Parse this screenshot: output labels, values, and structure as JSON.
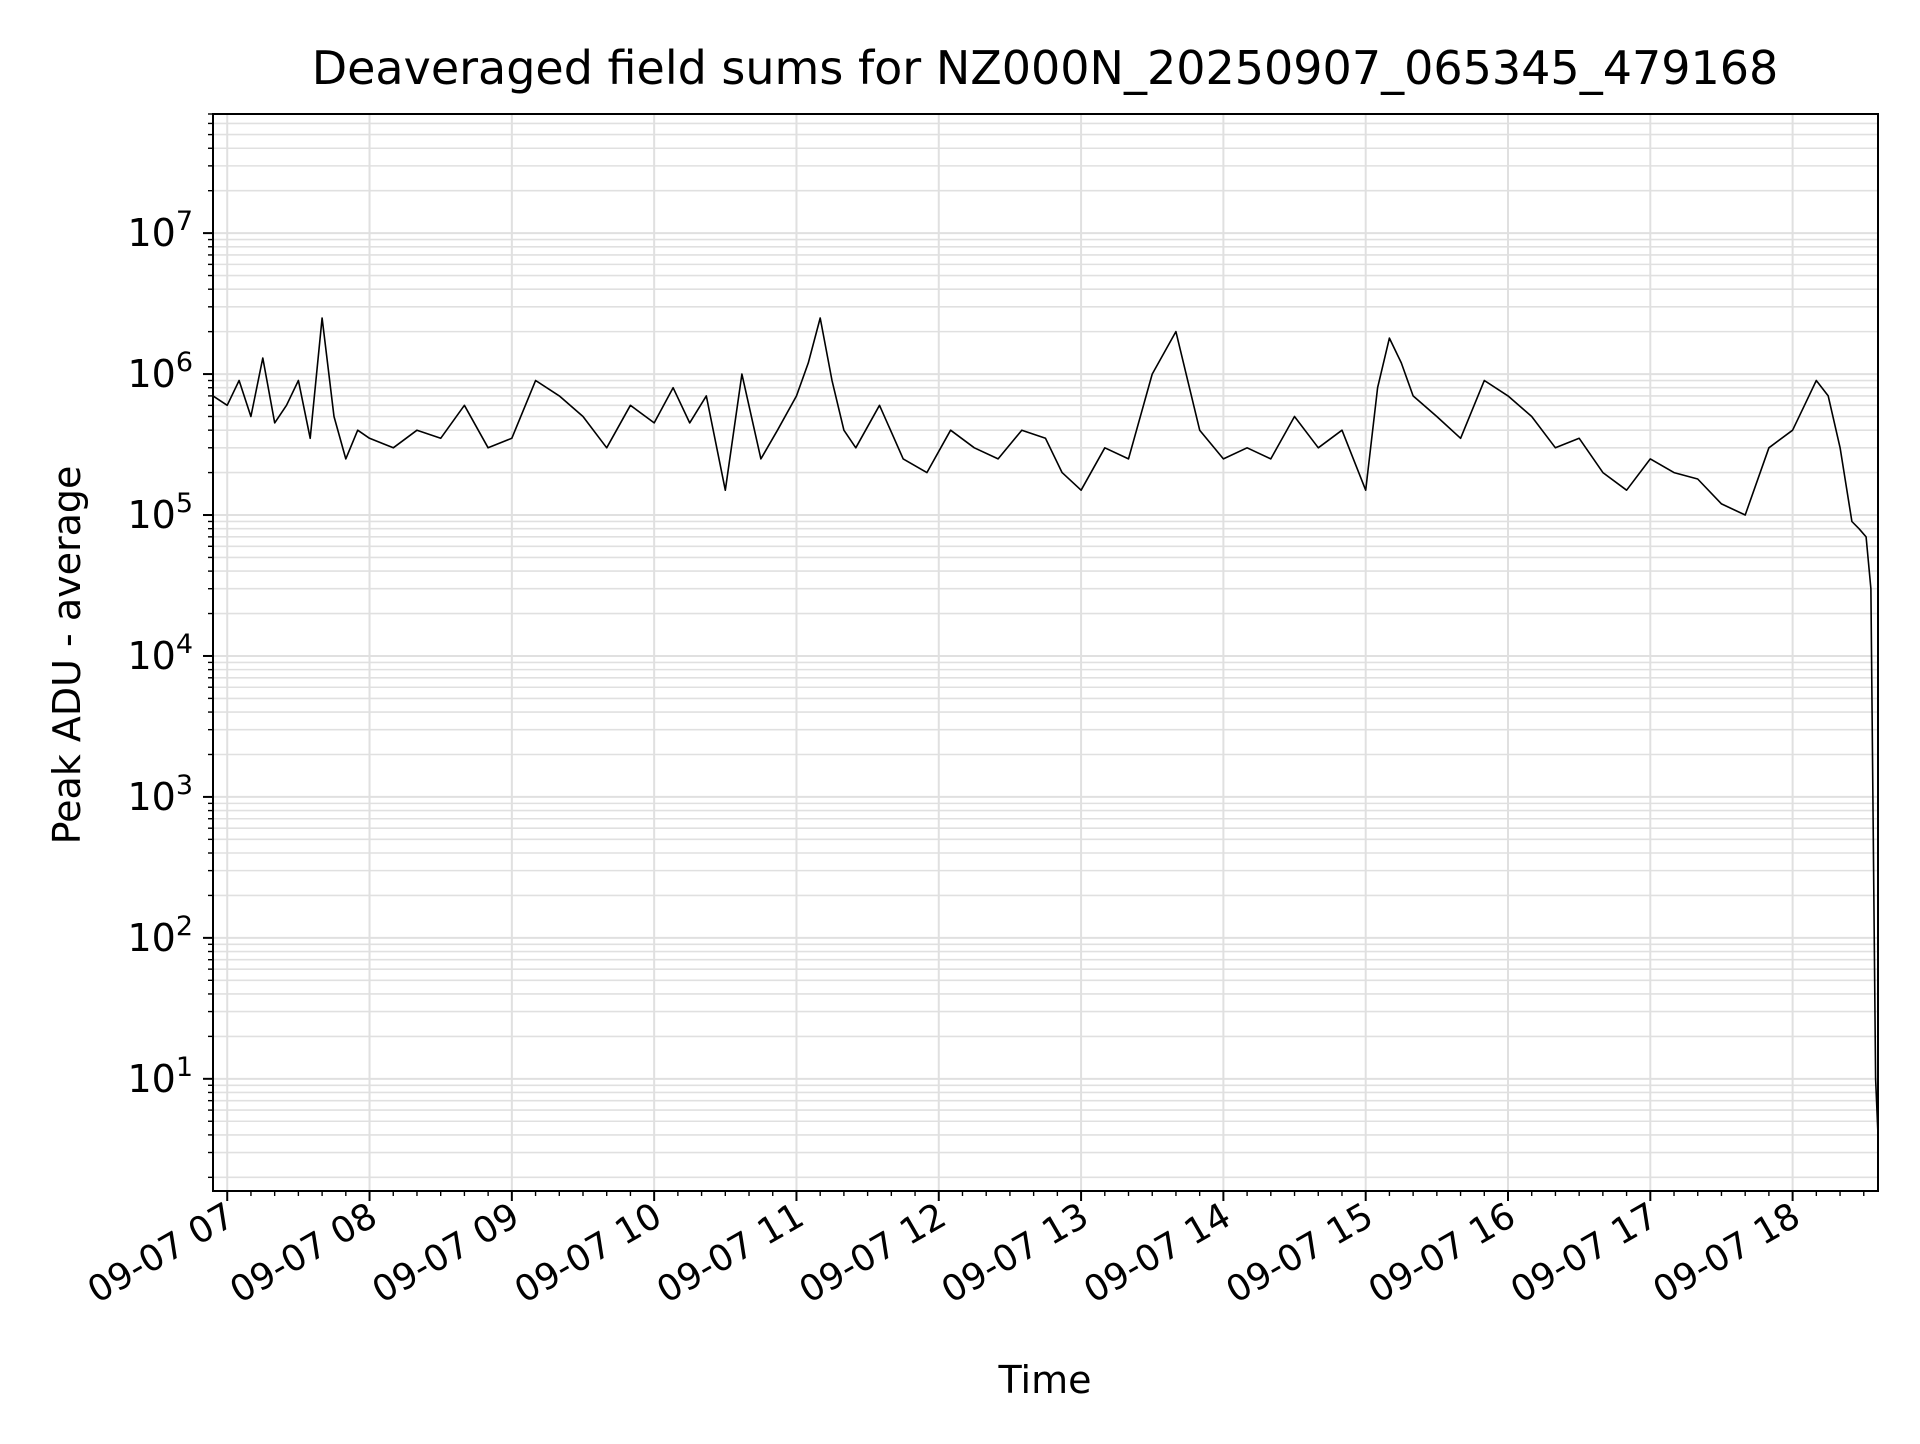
{
  "chart_data": {
    "type": "line",
    "title": "Deaveraged field sums for NZ000N_20250907_065345_479168",
    "xlabel": "Time",
    "ylabel": "Peak ADU - average",
    "yscale": "log",
    "ylim": [
      1.6,
      70000000
    ],
    "xlim": [
      "2025-09-07 06:54",
      "2025-09-07 18:36"
    ],
    "grid": true,
    "line_color": "#000000",
    "grid_color": "#e0e0e0",
    "x_ticks": [
      {
        "value": "2025-09-07 07:00",
        "label": "09-07 07"
      },
      {
        "value": "2025-09-07 08:00",
        "label": "09-07 08"
      },
      {
        "value": "2025-09-07 09:00",
        "label": "09-07 09"
      },
      {
        "value": "2025-09-07 10:00",
        "label": "09-07 10"
      },
      {
        "value": "2025-09-07 11:00",
        "label": "09-07 11"
      },
      {
        "value": "2025-09-07 12:00",
        "label": "09-07 12"
      },
      {
        "value": "2025-09-07 13:00",
        "label": "09-07 13"
      },
      {
        "value": "2025-09-07 14:00",
        "label": "09-07 14"
      },
      {
        "value": "2025-09-07 15:00",
        "label": "09-07 15"
      },
      {
        "value": "2025-09-07 16:00",
        "label": "09-07 16"
      },
      {
        "value": "2025-09-07 17:00",
        "label": "09-07 17"
      },
      {
        "value": "2025-09-07 18:00",
        "label": "09-07 18"
      }
    ],
    "y_ticks": [
      {
        "value": 10,
        "base": "10",
        "exp": "1"
      },
      {
        "value": 100,
        "base": "10",
        "exp": "2"
      },
      {
        "value": 1000,
        "base": "10",
        "exp": "3"
      },
      {
        "value": 10000,
        "base": "10",
        "exp": "4"
      },
      {
        "value": 100000,
        "base": "10",
        "exp": "5"
      },
      {
        "value": 1000000,
        "base": "10",
        "exp": "6"
      },
      {
        "value": 10000000,
        "base": "10",
        "exp": "7"
      }
    ],
    "series": [
      {
        "x": [
          "2025-09-07 06:54",
          "2025-09-07 07:00",
          "2025-09-07 07:05",
          "2025-09-07 07:10",
          "2025-09-07 07:15",
          "2025-09-07 07:20",
          "2025-09-07 07:25",
          "2025-09-07 07:30",
          "2025-09-07 07:35",
          "2025-09-07 07:40",
          "2025-09-07 07:45",
          "2025-09-07 07:50",
          "2025-09-07 07:55",
          "2025-09-07 08:00",
          "2025-09-07 08:10",
          "2025-09-07 08:20",
          "2025-09-07 08:30",
          "2025-09-07 08:40",
          "2025-09-07 08:50",
          "2025-09-07 09:00",
          "2025-09-07 09:10",
          "2025-09-07 09:20",
          "2025-09-07 09:30",
          "2025-09-07 09:40",
          "2025-09-07 09:50",
          "2025-09-07 10:00",
          "2025-09-07 10:08",
          "2025-09-07 10:15",
          "2025-09-07 10:22",
          "2025-09-07 10:30",
          "2025-09-07 10:37",
          "2025-09-07 10:45",
          "2025-09-07 10:52",
          "2025-09-07 11:00",
          "2025-09-07 11:05",
          "2025-09-07 11:10",
          "2025-09-07 11:15",
          "2025-09-07 11:20",
          "2025-09-07 11:25",
          "2025-09-07 11:35",
          "2025-09-07 11:45",
          "2025-09-07 11:55",
          "2025-09-07 12:05",
          "2025-09-07 12:15",
          "2025-09-07 12:25",
          "2025-09-07 12:35",
          "2025-09-07 12:45",
          "2025-09-07 12:52",
          "2025-09-07 13:00",
          "2025-09-07 13:10",
          "2025-09-07 13:20",
          "2025-09-07 13:30",
          "2025-09-07 13:40",
          "2025-09-07 13:50",
          "2025-09-07 14:00",
          "2025-09-07 14:10",
          "2025-09-07 14:20",
          "2025-09-07 14:30",
          "2025-09-07 14:40",
          "2025-09-07 14:50",
          "2025-09-07 15:00",
          "2025-09-07 15:05",
          "2025-09-07 15:10",
          "2025-09-07 15:15",
          "2025-09-07 15:20",
          "2025-09-07 15:30",
          "2025-09-07 15:40",
          "2025-09-07 15:50",
          "2025-09-07 16:00",
          "2025-09-07 16:10",
          "2025-09-07 16:20",
          "2025-09-07 16:30",
          "2025-09-07 16:40",
          "2025-09-07 16:50",
          "2025-09-07 17:00",
          "2025-09-07 17:10",
          "2025-09-07 17:20",
          "2025-09-07 17:30",
          "2025-09-07 17:40",
          "2025-09-07 17:50",
          "2025-09-07 18:00",
          "2025-09-07 18:05",
          "2025-09-07 18:10",
          "2025-09-07 18:15",
          "2025-09-07 18:20",
          "2025-09-07 18:25",
          "2025-09-07 18:28",
          "2025-09-07 18:31",
          "2025-09-07 18:33",
          "2025-09-07 18:35",
          "2025-09-07 18:36"
        ],
        "y": [
          700000,
          600000,
          900000,
          500000,
          1300000,
          450000,
          600000,
          900000,
          350000,
          2500000,
          500000,
          250000,
          400000,
          350000,
          300000,
          400000,
          350000,
          600000,
          300000,
          350000,
          900000,
          700000,
          500000,
          300000,
          600000,
          450000,
          800000,
          450000,
          700000,
          150000,
          1000000,
          250000,
          400000,
          700000,
          1200000,
          2500000,
          900000,
          400000,
          300000,
          600000,
          250000,
          200000,
          400000,
          300000,
          250000,
          400000,
          350000,
          200000,
          150000,
          300000,
          250000,
          1000000,
          2000000,
          400000,
          250000,
          300000,
          250000,
          500000,
          300000,
          400000,
          150000,
          800000,
          1800000,
          1200000,
          700000,
          500000,
          350000,
          900000,
          700000,
          500000,
          300000,
          350000,
          200000,
          150000,
          250000,
          200000,
          180000,
          120000,
          100000,
          300000,
          400000,
          600000,
          900000,
          700000,
          300000,
          90000,
          80000,
          70000,
          30000,
          10,
          4
        ]
      }
    ]
  }
}
